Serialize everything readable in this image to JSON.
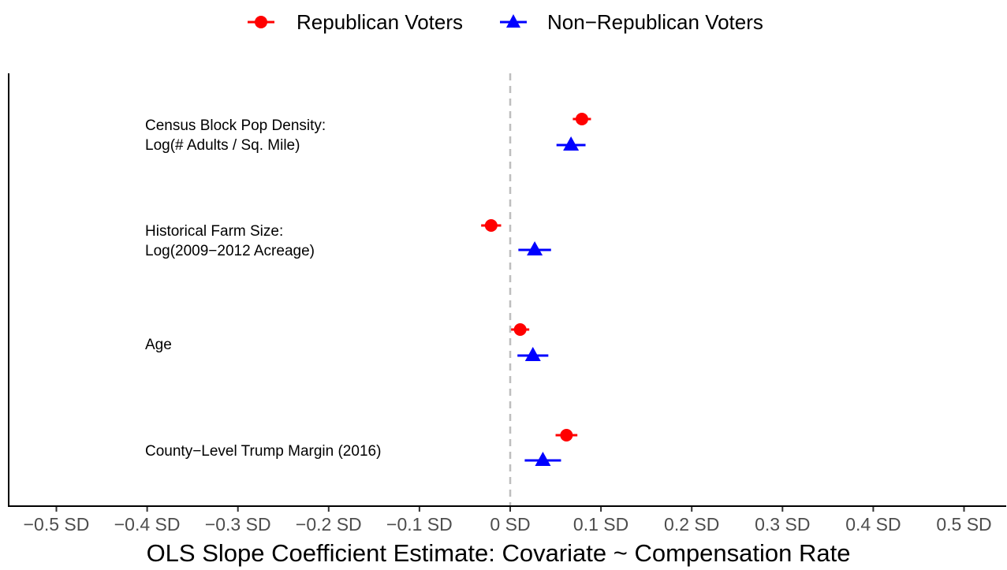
{
  "chart_data": {
    "type": "scatter",
    "xlabel": "OLS Slope Coefficient Estimate: Covariate ~ Compensation Rate",
    "xlim": [
      -0.55,
      0.55
    ],
    "x_ticks": [
      {
        "value": -0.5,
        "label": "−0.5 SD"
      },
      {
        "value": -0.4,
        "label": "−0.4 SD"
      },
      {
        "value": -0.3,
        "label": "−0.3 SD"
      },
      {
        "value": -0.2,
        "label": "−0.2 SD"
      },
      {
        "value": -0.1,
        "label": "−0.1 SD"
      },
      {
        "value": 0,
        "label": "0 SD"
      },
      {
        "value": 0.1,
        "label": "0.1 SD"
      },
      {
        "value": 0.2,
        "label": "0.2 SD"
      },
      {
        "value": 0.3,
        "label": "0.3 SD"
      },
      {
        "value": 0.4,
        "label": "0.4 SD"
      },
      {
        "value": 0.5,
        "label": "0.5 SD"
      }
    ],
    "reference_line": {
      "x": 0,
      "style": "dashed",
      "color": "#bebebe"
    },
    "grid": false,
    "legend_position": "top",
    "covariates": [
      {
        "lines": [
          "Census Block Pop Density:",
          "Log(# Adults / Sq. Mile)"
        ]
      },
      {
        "lines": [
          "Historical Farm Size:",
          "Log(2009−2012 Acreage)"
        ]
      },
      {
        "lines": [
          "Age"
        ]
      },
      {
        "lines": [
          "County−Level Trump Margin (2016)"
        ]
      }
    ],
    "series": [
      {
        "name": "Republican Voters",
        "marker": "circle",
        "color": "#ff0000",
        "estimates": [
          0.079,
          -0.021,
          0.011,
          0.062
        ],
        "ci_low": [
          0.069,
          -0.032,
          0.001,
          0.05
        ],
        "ci_high": [
          0.089,
          -0.01,
          0.021,
          0.074
        ]
      },
      {
        "name": "Non−Republican Voters",
        "marker": "triangle",
        "color": "#0000ff",
        "estimates": [
          0.067,
          0.027,
          0.025,
          0.036
        ],
        "ci_low": [
          0.051,
          0.009,
          0.008,
          0.016
        ],
        "ci_high": [
          0.083,
          0.045,
          0.042,
          0.056
        ]
      }
    ]
  }
}
